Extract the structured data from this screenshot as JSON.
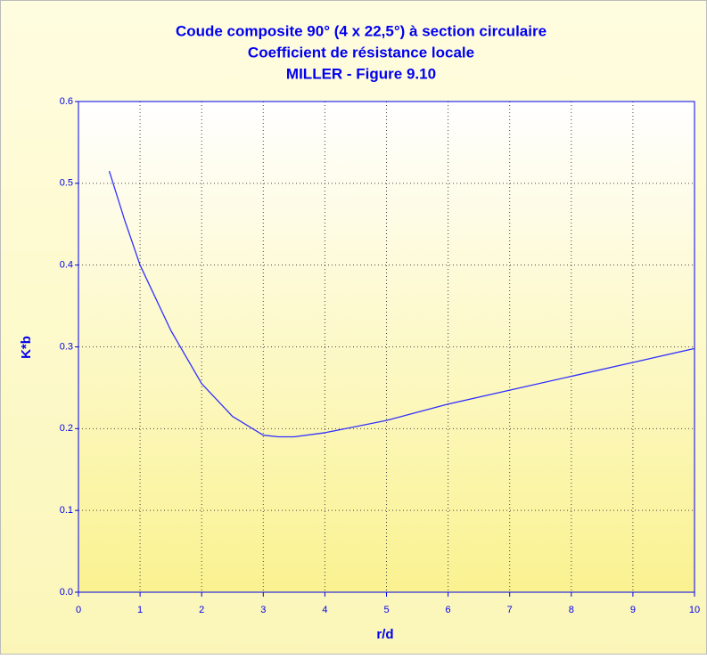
{
  "chart_data": {
    "type": "line",
    "title": [
      "Coude composite 90° (4 x 22,5°) à section circulaire",
      "Coefficient de résistance locale",
      "MILLER - Figure 9.10"
    ],
    "x_label": "r/d",
    "y_label": "K*b",
    "x": [
      0.5,
      0.75,
      1.0,
      1.5,
      2.0,
      2.5,
      3.0,
      3.25,
      3.5,
      4.0,
      5.0,
      6.0,
      7.0,
      8.0,
      9.0,
      10.0
    ],
    "series": [
      {
        "name": "K*b",
        "color": "#3030ff",
        "values": [
          0.515,
          0.455,
          0.4,
          0.32,
          0.255,
          0.215,
          0.192,
          0.19,
          0.19,
          0.195,
          0.21,
          0.23,
          0.247,
          0.264,
          0.281,
          0.298
        ]
      }
    ],
    "xlim": [
      0,
      10
    ],
    "xticks": [
      0,
      1,
      2,
      3,
      4,
      5,
      6,
      7,
      8,
      9,
      10
    ],
    "ylim": [
      0,
      0.6
    ],
    "yticks": [
      {
        "value": 0,
        "label": "0.0"
      },
      0.1,
      0.2,
      0.3,
      0.4,
      0.5,
      0.6
    ],
    "grid": true
  }
}
